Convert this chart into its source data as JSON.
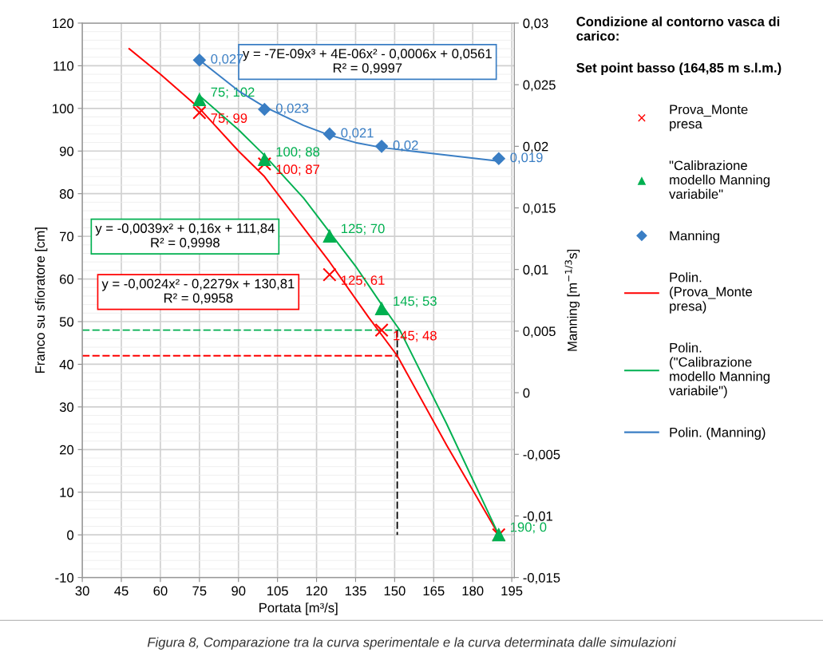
{
  "chart_data": {
    "type": "scatter",
    "title": "Condizione al contorno vasca di carico:",
    "subtitle": "Set point basso (164,85 m s.l.m.)",
    "xlabel": "Portata [m³/s]",
    "ylabel": "Franco su sfioratore [cm]",
    "y2label": "Manning [m$^{−1/3}$s]",
    "xlim": [
      30,
      196
    ],
    "xticks": [
      30,
      45,
      60,
      75,
      90,
      105,
      120,
      135,
      150,
      165,
      180,
      195
    ],
    "ylim": [
      -10,
      120
    ],
    "yticks": [
      -10,
      0,
      10,
      20,
      30,
      40,
      50,
      60,
      70,
      80,
      90,
      100,
      110,
      120
    ],
    "y2lim": [
      -0.015,
      0.03
    ],
    "y2ticks": [
      {
        "value": -0.015,
        "label": "-0,015"
      },
      {
        "value": -0.01,
        "label": "-0,01"
      },
      {
        "value": -0.005,
        "label": "-0,005"
      },
      {
        "value": 0,
        "label": "0"
      },
      {
        "value": 0.005,
        "label": "0,005"
      },
      {
        "value": 0.01,
        "label": "0,01"
      },
      {
        "value": 0.015,
        "label": "0,015"
      },
      {
        "value": 0.02,
        "label": "0,02"
      },
      {
        "value": 0.025,
        "label": "0,025"
      },
      {
        "value": 0.03,
        "label": "0,03"
      }
    ],
    "grid": true,
    "legend": "right",
    "series": [
      {
        "type": "line",
        "line_style": "dashed",
        "color": "#00b050",
        "x": [
          30,
          152
        ],
        "values": [
          48,
          48
        ]
      },
      {
        "type": "line",
        "line_style": "dashed",
        "color": "#ff0000",
        "x": [
          30,
          151
        ],
        "values": [
          42,
          42
        ]
      },
      {
        "type": "line",
        "line_style": "dashed",
        "color": "#000000",
        "x": [
          151,
          151
        ],
        "values": [
          48,
          0
        ]
      },
      {
        "name": "Prova_Monte presa",
        "color": "#ff0000",
        "marker": "cross",
        "x": [
          75,
          100,
          125,
          145,
          190
        ],
        "values": [
          99,
          87,
          61,
          48,
          0
        ],
        "value_labels": [
          "75; 99",
          "100; 87",
          "125; 61",
          "145; 48",
          null
        ]
      },
      {
        "name": "\"Calibrazione modello Manning variabile\"",
        "color": "#00b050",
        "marker": "triangle",
        "x": [
          75,
          100,
          125,
          145,
          190
        ],
        "values": [
          102,
          88,
          70,
          53,
          0
        ],
        "value_labels": [
          "75; 102",
          "100; 88",
          "125; 70",
          "145; 53",
          "190; 0"
        ]
      },
      {
        "name": "Manning",
        "axis": "y2",
        "color": "#3a7ec4",
        "marker": "diamond",
        "x": [
          75,
          100,
          125,
          145,
          190
        ],
        "values": [
          0.027,
          0.023,
          0.021,
          0.02,
          0.019
        ],
        "value_labels": [
          "0,027",
          "0,023",
          "0,021",
          "0,02",
          "0,019"
        ]
      },
      {
        "type": "line",
        "name": "Polin. (Prova_Monte presa)",
        "color": "#ff0000",
        "x": [
          48,
          60,
          75,
          90,
          100,
          115,
          125,
          140,
          151,
          170,
          190
        ],
        "values": [
          114,
          108,
          100,
          90,
          84,
          72,
          64,
          51,
          42,
          21,
          0
        ]
      },
      {
        "type": "line",
        "name": "Polin. (\"Calibrazione modello Manning variabile\")",
        "color": "#00b050",
        "x": [
          75,
          90,
          100,
          115,
          125,
          135,
          145,
          152,
          170,
          190
        ],
        "values": [
          103,
          95,
          89,
          79,
          71,
          63,
          54,
          48,
          26,
          0
        ]
      },
      {
        "type": "line",
        "name": "Polin. (Manning)",
        "axis": "y2",
        "color": "#3a7ec4",
        "x": [
          75,
          90,
          100,
          115,
          125,
          135,
          145,
          165,
          190
        ],
        "values": [
          0.027,
          0.0245,
          0.0232,
          0.0217,
          0.0209,
          0.0203,
          0.0199,
          0.0194,
          0.0188
        ]
      }
    ],
    "annotations": [
      "y = -7E-09x³ + 4E-06x² - 0,0006x + 0,0561\nR² = 0,9997",
      "y = -0,0039x² + 0,16x + 111,84\nR² = 0,9998",
      "y = -0,0024x² - 0,2279x + 130,81\nR² = 0,9958",
      "Figura 8, Comparazione tra la curva sperimentale e la curva determinata dalle simulazioni"
    ]
  }
}
